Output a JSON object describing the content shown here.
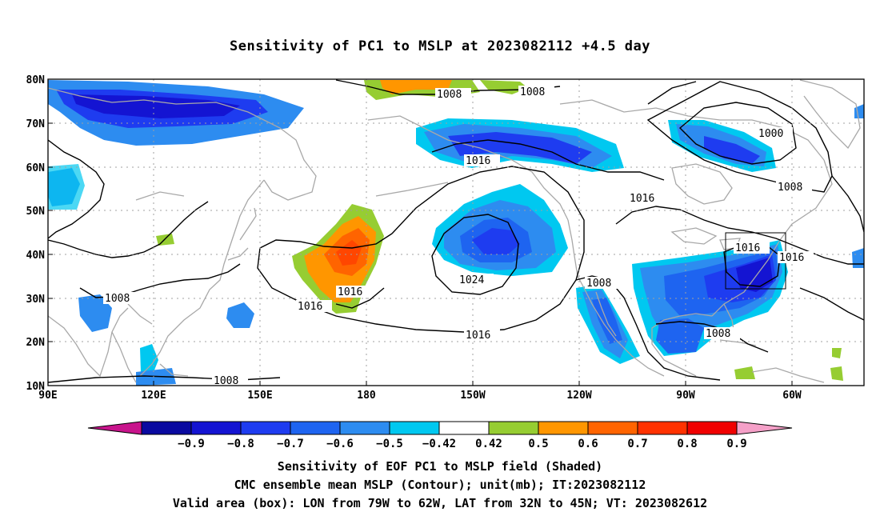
{
  "title": "Sensitivity of PC1 to MSLP at 2023082112 +4.5 day",
  "map": {
    "lat_labels": [
      "80N",
      "70N",
      "60N",
      "50N",
      "40N",
      "30N",
      "20N",
      "10N"
    ],
    "lon_labels": [
      "90E",
      "120E",
      "150E",
      "180",
      "150W",
      "120W",
      "90W",
      "60W"
    ],
    "contour_labels": [
      {
        "text": "1008",
        "id": "c1008-north-a"
      },
      {
        "text": "1008",
        "id": "c1008-north-b"
      },
      {
        "text": "1000",
        "id": "c1000"
      },
      {
        "text": "1016",
        "id": "c1016-gulf"
      },
      {
        "text": "1016",
        "id": "c1016-west"
      },
      {
        "text": "1008",
        "id": "c1008-east"
      },
      {
        "text": "1016",
        "id": "c1016-box"
      },
      {
        "text": "1016",
        "id": "c1016-box-right"
      },
      {
        "text": "1016",
        "id": "c1016-mid"
      },
      {
        "text": "1016",
        "id": "c1016-center"
      },
      {
        "text": "1024",
        "id": "c1024"
      },
      {
        "text": "1008",
        "id": "c1008-baja"
      },
      {
        "text": "1008",
        "id": "c1008-gulf-mexico"
      },
      {
        "text": "1008",
        "id": "c1008-asia"
      },
      {
        "text": "1016",
        "id": "c1016-south"
      },
      {
        "text": "1008",
        "id": "c1008-south"
      }
    ],
    "valid_box": {
      "lon_from": "79W",
      "lon_to": "62W",
      "lat_from": "32N",
      "lat_to": "45N"
    }
  },
  "colorbar": {
    "labels": [
      "-0.9",
      "-0.8",
      "-0.7",
      "-0.6",
      "-0.5",
      "-0.42",
      "0.42",
      "0.5",
      "0.6",
      "0.7",
      "0.8",
      "0.9"
    ],
    "colors": [
      "#0a0aa0",
      "#1414d2",
      "#1e3cf0",
      "#1e64f0",
      "#2d8cf0",
      "#00c8f0",
      "#ffffff",
      "#96cd32",
      "#ff9600",
      "#ff6400",
      "#ff3200",
      "#f00000"
    ],
    "low_extension_color": "#c8148c",
    "high_extension_color": "#f5a0c8"
  },
  "caption": {
    "line1": "Sensitivity of EOF PC1 to MSLP field (Shaded)",
    "line2": "CMC ensemble mean MSLP (Contour); unit(mb); IT:2023082112",
    "line3": "Valid area (box): LON from 79W to 62W, LAT from 32N to 45N; VT: 2023082612"
  }
}
